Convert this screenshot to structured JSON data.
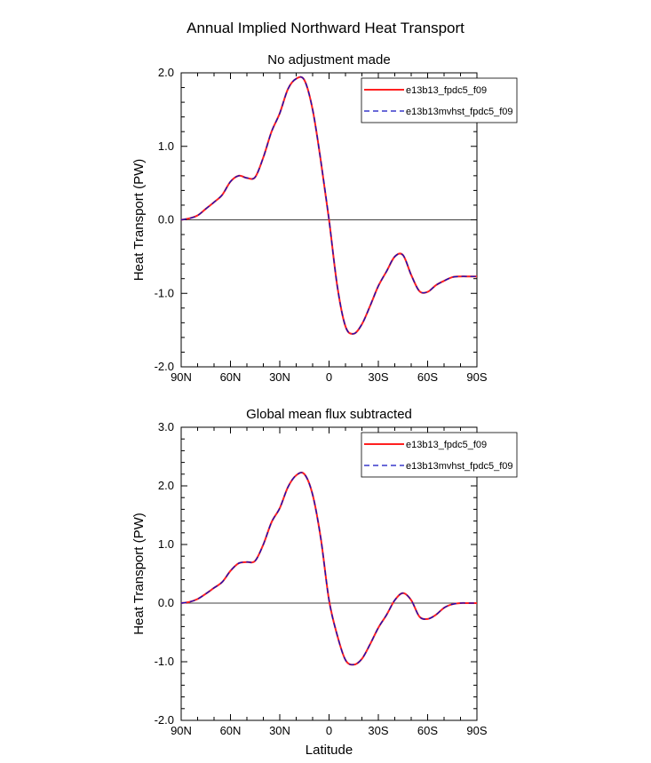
{
  "title": "Annual Implied Northward Heat Transport",
  "chart_data": [
    {
      "type": "line",
      "title": "No adjustment made",
      "xlabel": "",
      "ylabel": "Heat Transport (PW)",
      "x_tick_labels": [
        "90N",
        "60N",
        "30N",
        "0",
        "30S",
        "60S",
        "90S"
      ],
      "y_tick_labels": [
        "2.0",
        "1.0",
        "0.0",
        "-1.0",
        "-2.0"
      ],
      "xlim": [
        90,
        -90
      ],
      "ylim": [
        -2.0,
        2.0
      ],
      "y_ticks": [
        2.0,
        1.0,
        0.0,
        -1.0,
        -2.0
      ],
      "x": [
        90,
        85,
        80,
        75,
        70,
        65,
        60,
        55,
        50,
        45,
        40,
        35,
        30,
        25,
        20,
        15,
        10,
        5,
        0,
        -5,
        -10,
        -15,
        -20,
        -25,
        -30,
        -35,
        -40,
        -45,
        -50,
        -55,
        -60,
        -65,
        -70,
        -75,
        -80,
        -85,
        -90
      ],
      "series": [
        {
          "name": "e13b13_fpdc5_f09",
          "color": "#ff2020",
          "dash": "solid",
          "values": [
            0.0,
            0.02,
            0.06,
            0.15,
            0.24,
            0.34,
            0.52,
            0.6,
            0.57,
            0.58,
            0.85,
            1.2,
            1.45,
            1.78,
            1.92,
            1.9,
            1.5,
            0.8,
            0.0,
            -0.9,
            -1.45,
            -1.55,
            -1.42,
            -1.17,
            -0.9,
            -0.7,
            -0.5,
            -0.48,
            -0.75,
            -0.97,
            -0.98,
            -0.89,
            -0.83,
            -0.78,
            -0.77,
            -0.77,
            -0.77
          ]
        },
        {
          "name": "e13b13mvhst_fpdc5_f09",
          "color": "#1010c0",
          "dash": "dashed",
          "values": [
            0.0,
            0.02,
            0.06,
            0.15,
            0.24,
            0.34,
            0.52,
            0.6,
            0.57,
            0.58,
            0.85,
            1.2,
            1.45,
            1.78,
            1.92,
            1.9,
            1.5,
            0.8,
            0.0,
            -0.9,
            -1.45,
            -1.55,
            -1.42,
            -1.17,
            -0.9,
            -0.7,
            -0.5,
            -0.48,
            -0.75,
            -0.97,
            -0.98,
            -0.89,
            -0.83,
            -0.78,
            -0.77,
            -0.77,
            -0.77
          ]
        }
      ],
      "legend": "top-right"
    },
    {
      "type": "line",
      "title": "Global mean flux subtracted",
      "xlabel": "Latitude",
      "ylabel": "Heat Transport (PW)",
      "x_tick_labels": [
        "90N",
        "60N",
        "30N",
        "0",
        "30S",
        "60S",
        "90S"
      ],
      "y_tick_labels": [
        "3.0",
        "2.0",
        "1.0",
        "0.0",
        "-1.0",
        "-2.0"
      ],
      "xlim": [
        90,
        -90
      ],
      "ylim": [
        -2.0,
        3.0
      ],
      "y_ticks": [
        3.0,
        2.0,
        1.0,
        0.0,
        -1.0,
        -2.0
      ],
      "x": [
        90,
        85,
        80,
        75,
        70,
        65,
        60,
        55,
        50,
        45,
        40,
        35,
        30,
        25,
        20,
        15,
        10,
        5,
        0,
        -5,
        -10,
        -15,
        -20,
        -25,
        -30,
        -35,
        -40,
        -45,
        -50,
        -55,
        -60,
        -65,
        -70,
        -75,
        -80,
        -85,
        -90
      ],
      "series": [
        {
          "name": "e13b13_fpdc5_f09",
          "color": "#ff2020",
          "dash": "solid",
          "values": [
            0.0,
            0.02,
            0.07,
            0.16,
            0.26,
            0.36,
            0.55,
            0.68,
            0.7,
            0.72,
            1.0,
            1.38,
            1.62,
            1.98,
            2.18,
            2.2,
            1.85,
            1.1,
            0.05,
            -0.55,
            -0.97,
            -1.05,
            -0.95,
            -0.7,
            -0.42,
            -0.2,
            0.05,
            0.17,
            0.05,
            -0.23,
            -0.27,
            -0.2,
            -0.08,
            -0.02,
            0.0,
            0.0,
            0.0
          ]
        },
        {
          "name": "e13b13mvhst_fpdc5_f09",
          "color": "#1010c0",
          "dash": "dashed",
          "values": [
            0.0,
            0.02,
            0.07,
            0.16,
            0.26,
            0.36,
            0.55,
            0.68,
            0.7,
            0.72,
            1.0,
            1.38,
            1.62,
            1.98,
            2.18,
            2.2,
            1.85,
            1.1,
            0.05,
            -0.55,
            -0.97,
            -1.05,
            -0.95,
            -0.7,
            -0.42,
            -0.2,
            0.05,
            0.17,
            0.05,
            -0.23,
            -0.27,
            -0.2,
            -0.08,
            -0.02,
            0.0,
            0.0,
            0.0
          ]
        }
      ],
      "legend": "top-right"
    }
  ]
}
